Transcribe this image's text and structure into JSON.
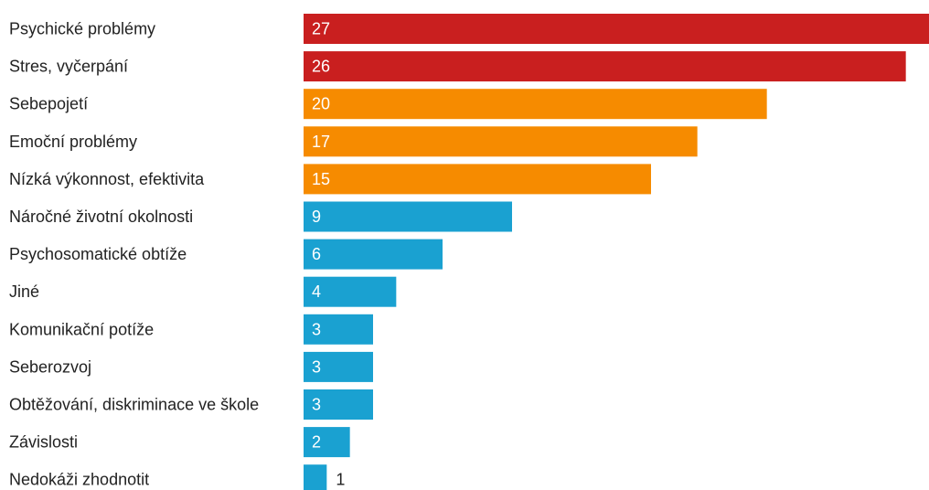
{
  "chart_data": {
    "type": "bar",
    "orientation": "horizontal",
    "title": "",
    "xlabel": "",
    "ylabel": "",
    "xlim": [
      0,
      27
    ],
    "grid": false,
    "legend": "none",
    "categories": [
      "Psychické problémy",
      "Stres, vyčerpání",
      "Sebepojetí",
      "Emoční problémy",
      "Nízká výkonnost, efektivita",
      "Náročné životní okolnosti",
      "Psychosomatické obtíže",
      "Jiné",
      "Komunikační potíže",
      "Seberozvoj",
      "Obtěžování, diskriminace ve škole",
      "Závislosti",
      "Nedokáži zhodnotit"
    ],
    "values": [
      27,
      26,
      20,
      17,
      15,
      9,
      6,
      4,
      3,
      3,
      3,
      2,
      1
    ],
    "bar_colors": [
      "#c91f1f",
      "#c91f1f",
      "#f68b00",
      "#f68b00",
      "#f68b00",
      "#1aa1d1",
      "#1aa1d1",
      "#1aa1d1",
      "#1aa1d1",
      "#1aa1d1",
      "#1aa1d1",
      "#1aa1d1",
      "#1aa1d1"
    ],
    "value_label_color_inside": "#ffffff",
    "value_label_color_outside": "#222222",
    "category_label_color": "#222222"
  }
}
